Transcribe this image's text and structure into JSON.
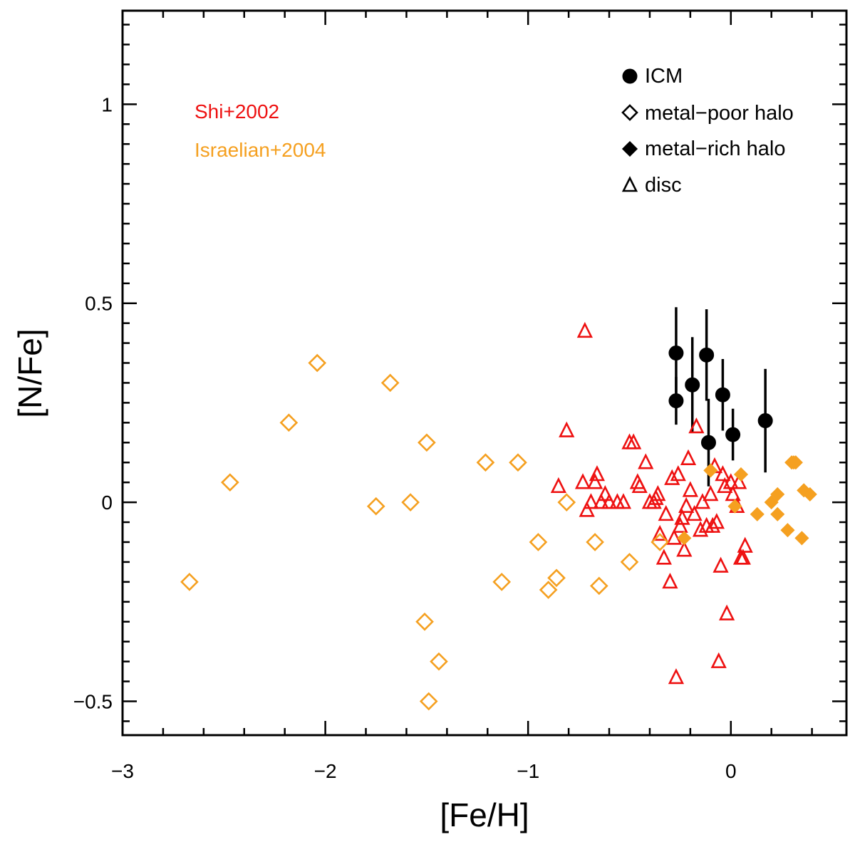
{
  "chart_data": {
    "type": "scatter",
    "title": "",
    "xlabel": "[Fe/H]",
    "ylabel": "[N/Fe]",
    "xlim": [
      -3.0,
      0.57
    ],
    "ylim": [
      -0.585,
      1.235
    ],
    "x_ticks": [
      -3,
      -2,
      -1,
      0
    ],
    "x_tick_labels": [
      "−3",
      "−2",
      "−1",
      "0"
    ],
    "y_ticks": [
      -0.5,
      0,
      0.5,
      1
    ],
    "y_tick_labels": [
      "−0.5",
      "0",
      "0.5",
      "1"
    ],
    "grid": false,
    "legend": {
      "placement": "top-right",
      "entries": [
        {
          "label": "ICM",
          "marker": "filled-circle"
        },
        {
          "label": "metal−poor halo",
          "marker": "open-diamond"
        },
        {
          "label": "metal−rich halo",
          "marker": "filled-diamond"
        },
        {
          "label": "disc",
          "marker": "open-triangle"
        }
      ]
    },
    "source_labels": [
      {
        "text": "Shi+2002",
        "color": "#ee1111"
      },
      {
        "text": "Israelian+2004",
        "color": "#f5a020"
      }
    ],
    "series": [
      {
        "name": "ICM",
        "marker": "filled-circle",
        "color": "#000000",
        "points": [
          {
            "x": -0.27,
            "y": 0.375,
            "err": 0.115
          },
          {
            "x": -0.27,
            "y": 0.255,
            "err": 0.06
          },
          {
            "x": -0.19,
            "y": 0.295,
            "err": 0.12
          },
          {
            "x": -0.12,
            "y": 0.37,
            "err": 0.115
          },
          {
            "x": -0.11,
            "y": 0.15,
            "err": 0.11
          },
          {
            "x": -0.04,
            "y": 0.27,
            "err": 0.09
          },
          {
            "x": 0.01,
            "y": 0.17,
            "err": 0.065
          },
          {
            "x": 0.17,
            "y": 0.205,
            "err": 0.13
          }
        ]
      },
      {
        "name": "Shi+2002 disc",
        "marker": "open-triangle",
        "color": "#ee1111",
        "points": [
          {
            "x": -0.72,
            "y": 0.43
          },
          {
            "x": -0.81,
            "y": 0.18
          },
          {
            "x": -0.85,
            "y": 0.04
          },
          {
            "x": -0.73,
            "y": 0.05
          },
          {
            "x": -0.71,
            "y": -0.02
          },
          {
            "x": -0.69,
            "y": 0.0
          },
          {
            "x": -0.67,
            "y": 0.05
          },
          {
            "x": -0.66,
            "y": 0.07
          },
          {
            "x": -0.64,
            "y": 0.0
          },
          {
            "x": -0.62,
            "y": 0.02
          },
          {
            "x": -0.6,
            "y": 0.0
          },
          {
            "x": -0.56,
            "y": 0.0
          },
          {
            "x": -0.53,
            "y": 0.0
          },
          {
            "x": -0.5,
            "y": 0.15
          },
          {
            "x": -0.48,
            "y": 0.15
          },
          {
            "x": -0.46,
            "y": 0.05
          },
          {
            "x": -0.45,
            "y": 0.04
          },
          {
            "x": -0.42,
            "y": 0.1
          },
          {
            "x": -0.4,
            "y": 0.0
          },
          {
            "x": -0.38,
            "y": 0.0
          },
          {
            "x": -0.37,
            "y": 0.01
          },
          {
            "x": -0.36,
            "y": 0.02
          },
          {
            "x": -0.35,
            "y": -0.08
          },
          {
            "x": -0.33,
            "y": -0.14
          },
          {
            "x": -0.32,
            "y": -0.03
          },
          {
            "x": -0.3,
            "y": -0.2
          },
          {
            "x": -0.29,
            "y": 0.06
          },
          {
            "x": -0.28,
            "y": -0.09
          },
          {
            "x": -0.27,
            "y": -0.44
          },
          {
            "x": -0.26,
            "y": 0.07
          },
          {
            "x": -0.25,
            "y": -0.06
          },
          {
            "x": -0.24,
            "y": -0.04
          },
          {
            "x": -0.23,
            "y": -0.12
          },
          {
            "x": -0.22,
            "y": -0.01
          },
          {
            "x": -0.21,
            "y": 0.11
          },
          {
            "x": -0.2,
            "y": 0.03
          },
          {
            "x": -0.18,
            "y": -0.03
          },
          {
            "x": -0.17,
            "y": 0.19
          },
          {
            "x": -0.15,
            "y": -0.07
          },
          {
            "x": -0.14,
            "y": 0.0
          },
          {
            "x": -0.12,
            "y": -0.06
          },
          {
            "x": -0.1,
            "y": 0.02
          },
          {
            "x": -0.09,
            "y": -0.06
          },
          {
            "x": -0.08,
            "y": 0.09
          },
          {
            "x": -0.07,
            "y": -0.05
          },
          {
            "x": -0.06,
            "y": -0.4
          },
          {
            "x": -0.05,
            "y": -0.16
          },
          {
            "x": -0.04,
            "y": 0.07
          },
          {
            "x": -0.03,
            "y": 0.04
          },
          {
            "x": -0.02,
            "y": -0.28
          },
          {
            "x": 0.0,
            "y": 0.05
          },
          {
            "x": 0.01,
            "y": 0.02
          },
          {
            "x": 0.03,
            "y": -0.01
          },
          {
            "x": 0.05,
            "y": -0.14
          },
          {
            "x": 0.06,
            "y": -0.14
          },
          {
            "x": 0.07,
            "y": -0.11
          },
          {
            "x": 0.04,
            "y": 0.05
          }
        ]
      },
      {
        "name": "Israelian+2004 metal-poor halo",
        "marker": "open-diamond",
        "color": "#f5a020",
        "points": [
          {
            "x": -2.67,
            "y": -0.2
          },
          {
            "x": -2.47,
            "y": 0.05
          },
          {
            "x": -2.18,
            "y": 0.2
          },
          {
            "x": -2.04,
            "y": 0.35
          },
          {
            "x": -1.75,
            "y": -0.01
          },
          {
            "x": -1.68,
            "y": 0.3
          },
          {
            "x": -1.58,
            "y": 0.0
          },
          {
            "x": -1.5,
            "y": 0.15
          },
          {
            "x": -1.51,
            "y": -0.3
          },
          {
            "x": -1.44,
            "y": -0.4
          },
          {
            "x": -1.49,
            "y": -0.5
          },
          {
            "x": -1.21,
            "y": 0.1
          },
          {
            "x": -1.13,
            "y": -0.2
          },
          {
            "x": -1.05,
            "y": 0.1
          },
          {
            "x": -0.95,
            "y": -0.1
          },
          {
            "x": -0.9,
            "y": -0.22
          },
          {
            "x": -0.86,
            "y": -0.19
          },
          {
            "x": -0.81,
            "y": 0.0
          },
          {
            "x": -0.67,
            "y": -0.1
          },
          {
            "x": -0.65,
            "y": -0.21
          },
          {
            "x": -0.5,
            "y": -0.15
          },
          {
            "x": -0.35,
            "y": -0.1
          }
        ]
      },
      {
        "name": "Israelian+2004 metal-rich halo",
        "marker": "filled-diamond",
        "color": "#f5a020",
        "points": [
          {
            "x": -0.23,
            "y": -0.09
          },
          {
            "x": -0.1,
            "y": 0.08
          },
          {
            "x": 0.02,
            "y": -0.01
          },
          {
            "x": 0.05,
            "y": 0.07
          },
          {
            "x": 0.13,
            "y": -0.03
          },
          {
            "x": 0.2,
            "y": 0.0
          },
          {
            "x": 0.23,
            "y": 0.02
          },
          {
            "x": 0.23,
            "y": -0.03
          },
          {
            "x": 0.28,
            "y": -0.07
          },
          {
            "x": 0.3,
            "y": 0.1
          },
          {
            "x": 0.31,
            "y": 0.1
          },
          {
            "x": 0.32,
            "y": 0.1
          },
          {
            "x": 0.35,
            "y": -0.09
          },
          {
            "x": 0.36,
            "y": 0.03
          },
          {
            "x": 0.39,
            "y": 0.02
          }
        ]
      }
    ]
  }
}
